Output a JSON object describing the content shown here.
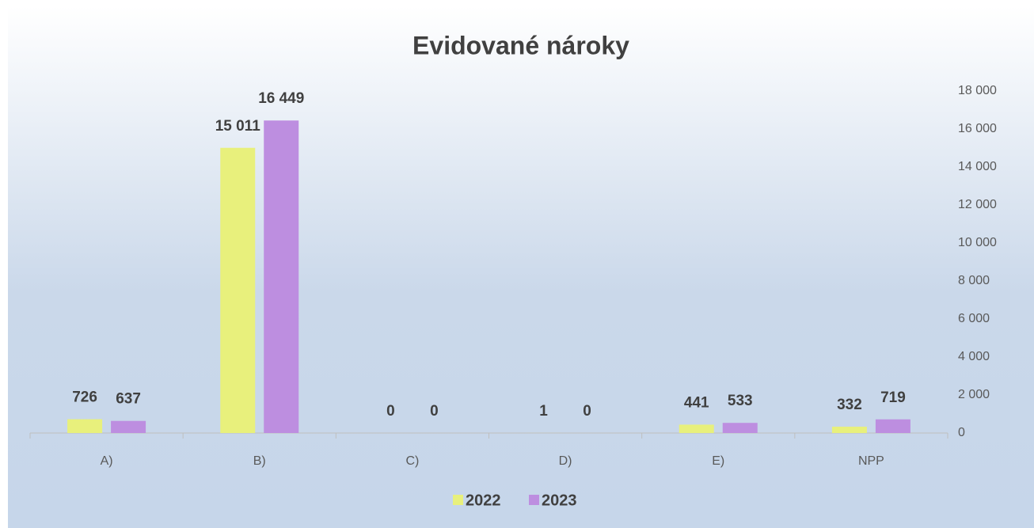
{
  "chart_data": {
    "type": "bar",
    "title": "Evidované nároky",
    "categories": [
      "A)",
      "B)",
      "C)",
      "D)",
      "E)",
      "NPP"
    ],
    "series": [
      {
        "name": "2022",
        "color": "#e8f07c",
        "values": [
          726,
          15011,
          0,
          1,
          441,
          332
        ],
        "value_labels": [
          "726",
          "15 011",
          "0",
          "1",
          "441",
          "332"
        ]
      },
      {
        "name": "2023",
        "color": "#bd8ee0",
        "values": [
          637,
          16449,
          0,
          0,
          533,
          719
        ],
        "value_labels": [
          "637",
          "16 449",
          "0",
          "0",
          "533",
          "719"
        ]
      }
    ],
    "ylim": [
      0,
      18000
    ],
    "yticks": [
      0,
      {
        "value": 2000,
        "label": "2 000"
      },
      {
        "value": 4000,
        "label": "4 000"
      },
      {
        "value": 6000,
        "label": "6 000"
      },
      {
        "value": 8000,
        "label": "8 000"
      },
      {
        "value": 10000,
        "label": "10 000"
      },
      {
        "value": 12000,
        "label": "12 000"
      },
      {
        "value": 14000,
        "label": "14 000"
      },
      {
        "value": 16000,
        "label": "16 000"
      },
      {
        "value": 18000,
        "label": "18 000"
      }
    ],
    "y_axis_side": "right",
    "legend": "bottom",
    "grid": false
  }
}
